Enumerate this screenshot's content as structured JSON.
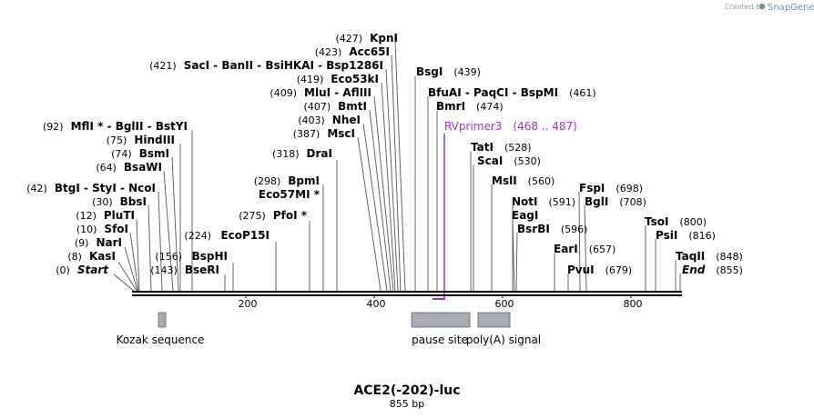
{
  "credit": {
    "prefix": "Created by",
    "brand": "SnapGene"
  },
  "map": {
    "name": "ACE2(-202)-luc",
    "length_label": "855 bp",
    "length": 855
  },
  "ticks": [
    "200",
    "400",
    "600",
    "800"
  ],
  "labels": [
    {
      "pos": "(427)",
      "text": "KpnI"
    },
    {
      "pos": "(423)",
      "text": "Acc65I"
    },
    {
      "pos": "(421)",
      "text": "SacI  - BanII  - BsiHKAI  - Bsp1286I"
    },
    {
      "pos": "(419)",
      "text": "Eco53kI"
    },
    {
      "pos": "(409)",
      "text": "MluI  - AflIII"
    },
    {
      "pos": "(407)",
      "text": "BmtI"
    },
    {
      "pos": "(403)",
      "text": "NheI"
    },
    {
      "pos": "(387)",
      "text": "MscI"
    },
    {
      "pos": "(318)",
      "text": "DraI"
    },
    {
      "pos": "(298)",
      "text": "BpmI"
    },
    {
      "pos": "",
      "text": "Eco57MI *"
    },
    {
      "pos": "(275)",
      "text": "PfoI *"
    },
    {
      "pos": "(224)",
      "text": "EcoP15I"
    },
    {
      "pos": "",
      "text": "BspHI"
    },
    {
      "pos": "(156)",
      "text": ""
    },
    {
      "pos": "(143)",
      "text": "BseRI"
    },
    {
      "pos": "(92)",
      "text": "MflI *  - BglII  - BstYI"
    },
    {
      "pos": "(75)",
      "text": "HindIII"
    },
    {
      "pos": "(74)",
      "text": "BsmI"
    },
    {
      "pos": "(64)",
      "text": "BsaWI"
    },
    {
      "pos": "(42)",
      "text": "BtgI  - StyI  - NcoI"
    },
    {
      "pos": "(30)",
      "text": "BbsI"
    },
    {
      "pos": "(12)",
      "text": "PluTI"
    },
    {
      "pos": "(10)",
      "text": "SfoI"
    },
    {
      "pos": "(9)",
      "text": "NarI"
    },
    {
      "pos": "(8)",
      "text": "KasI"
    },
    {
      "pos": "(0)",
      "text": "Start"
    },
    {
      "pos": "(439)",
      "text": "BsgI"
    },
    {
      "pos": "(461)",
      "text": "BfuAI  - PaqCI  - BspMI"
    },
    {
      "pos": "(474)",
      "text": "BmrI"
    },
    {
      "pos": "(528)",
      "text": "TatI"
    },
    {
      "pos": "(530)",
      "text": "ScaI"
    },
    {
      "pos": "(560)",
      "text": "MslI"
    },
    {
      "pos": "(591)",
      "text": "NotI"
    },
    {
      "pos": "",
      "text": "EagI"
    },
    {
      "pos": "(596)",
      "text": "BsrBI"
    },
    {
      "pos": "(657)",
      "text": "EarI"
    },
    {
      "pos": "(679)",
      "text": "PvuI"
    },
    {
      "pos": "(698)",
      "text": "FspI"
    },
    {
      "pos": "(708)",
      "text": "BglI"
    },
    {
      "pos": "(800)",
      "text": "TsoI"
    },
    {
      "pos": "(816)",
      "text": "PsiI"
    },
    {
      "pos": "(848)",
      "text": "TaqII"
    },
    {
      "pos": "(855)",
      "text": "End"
    }
  ],
  "primer": {
    "name": "RVprimer3",
    "range": "(468 .. 487)",
    "color": "#9b30d9"
  },
  "features": [
    {
      "name": "Kozak sequence",
      "color": "#a8acb4"
    },
    {
      "name": "pause site",
      "color": "#a8acb4"
    },
    {
      "name": "poly(A) signal",
      "color": "#a8acb4"
    }
  ]
}
